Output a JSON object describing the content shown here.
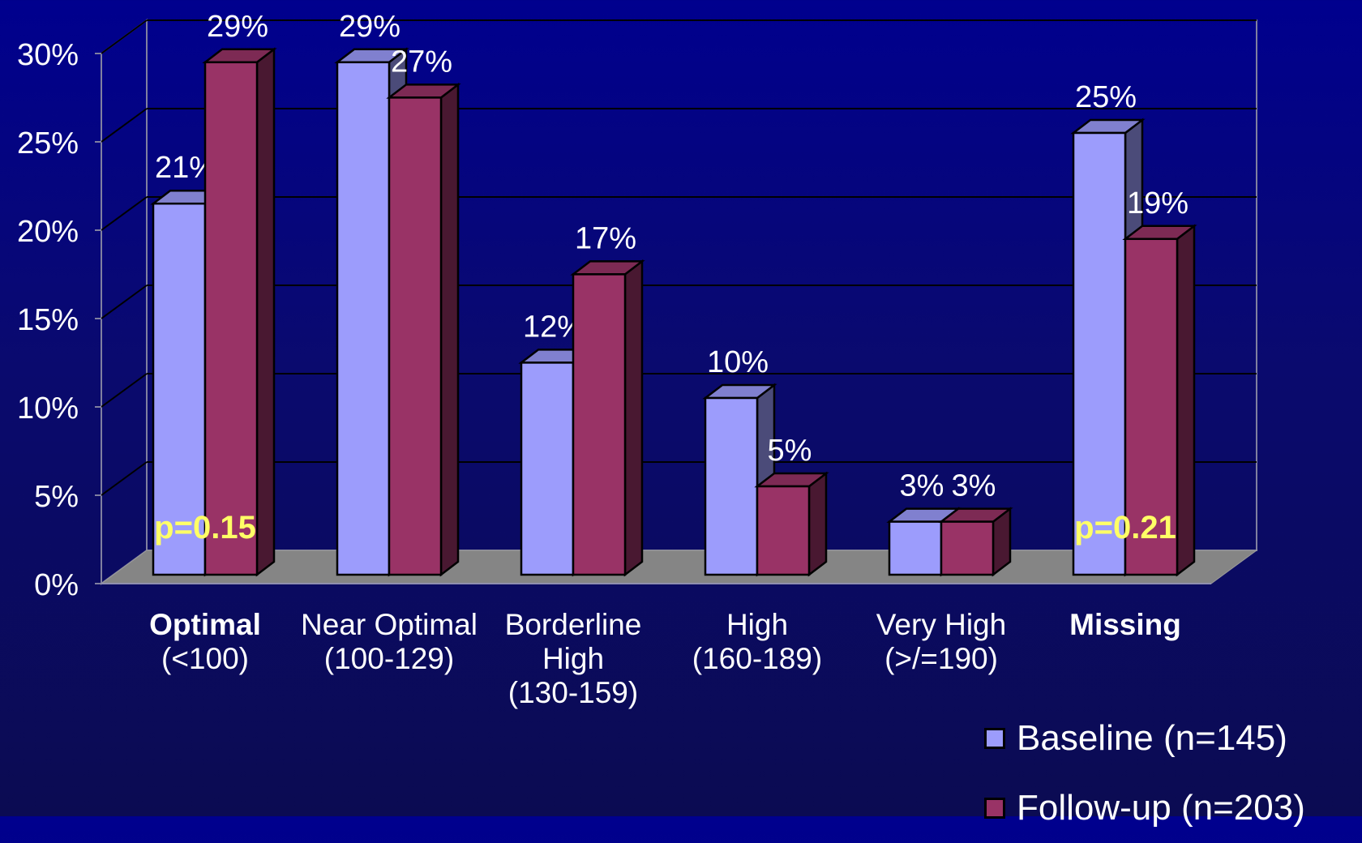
{
  "chart_data": {
    "type": "bar",
    "title": "",
    "xlabel": "",
    "ylabel": "",
    "ylim": [
      0,
      30
    ],
    "yticks": [
      "0%",
      "5%",
      "10%",
      "15%",
      "20%",
      "25%",
      "30%"
    ],
    "grid": true,
    "legend_position": "bottom-right",
    "categories": [
      {
        "lines": [
          "Optimal",
          "(<100)"
        ],
        "bold": true
      },
      {
        "lines": [
          "Near Optimal",
          "(100-129)"
        ],
        "bold": false
      },
      {
        "lines": [
          "Borderline",
          "High",
          "(130-159)"
        ],
        "bold": false
      },
      {
        "lines": [
          "High",
          "(160-189)"
        ],
        "bold": false
      },
      {
        "lines": [
          "Very High",
          "(>/=190)"
        ],
        "bold": false
      },
      {
        "lines": [
          "Missing"
        ],
        "bold": true
      }
    ],
    "series": [
      {
        "name": "Baseline (n=145)",
        "values": [
          21,
          29,
          12,
          10,
          3,
          25
        ],
        "labels": [
          "21%",
          "29%",
          "12%",
          "10%",
          "3%",
          "25%"
        ],
        "color": "#9c9cfc"
      },
      {
        "name": "Follow-up (n=203)",
        "values": [
          29,
          27,
          17,
          5,
          3,
          19
        ],
        "labels": [
          "29%",
          "27%",
          "17%",
          "5%",
          "3%",
          "19%"
        ],
        "color": "#993366"
      }
    ],
    "annotations": [
      {
        "text": "p=0.15",
        "category": 0,
        "color": "#ffff66"
      },
      {
        "text": "p=0.21",
        "category": 5,
        "color": "#ffff66"
      }
    ]
  }
}
